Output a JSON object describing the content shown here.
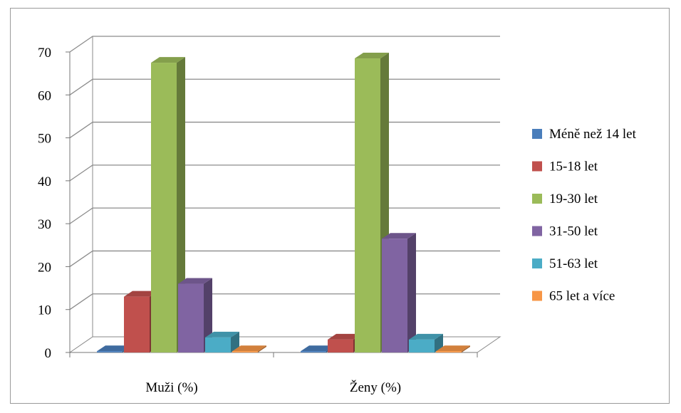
{
  "chart_data": {
    "type": "bar",
    "categories": [
      "Muži (%)",
      "Ženy (%)"
    ],
    "series": [
      {
        "name": "Méně než 14 let",
        "values": [
          0.3,
          0.3
        ],
        "color": "#4a7ebb"
      },
      {
        "name": "15-18 let",
        "values": [
          13,
          3
        ],
        "color": "#c0504d"
      },
      {
        "name": "19-30 let",
        "values": [
          67.5,
          68.5
        ],
        "color": "#9bbb59"
      },
      {
        "name": "31-50 let",
        "values": [
          16,
          26.5
        ],
        "color": "#8064a2"
      },
      {
        "name": "51-63 let",
        "values": [
          3.5,
          3
        ],
        "color": "#4bacc6"
      },
      {
        "name": "65 let a více",
        "values": [
          0.3,
          0.3
        ],
        "color": "#f79646"
      }
    ],
    "ylim": [
      0,
      70
    ],
    "yticks": [
      0,
      10,
      20,
      30,
      40,
      50,
      60,
      70
    ],
    "grid": true,
    "legend_position": "right",
    "style": "3d-column"
  }
}
